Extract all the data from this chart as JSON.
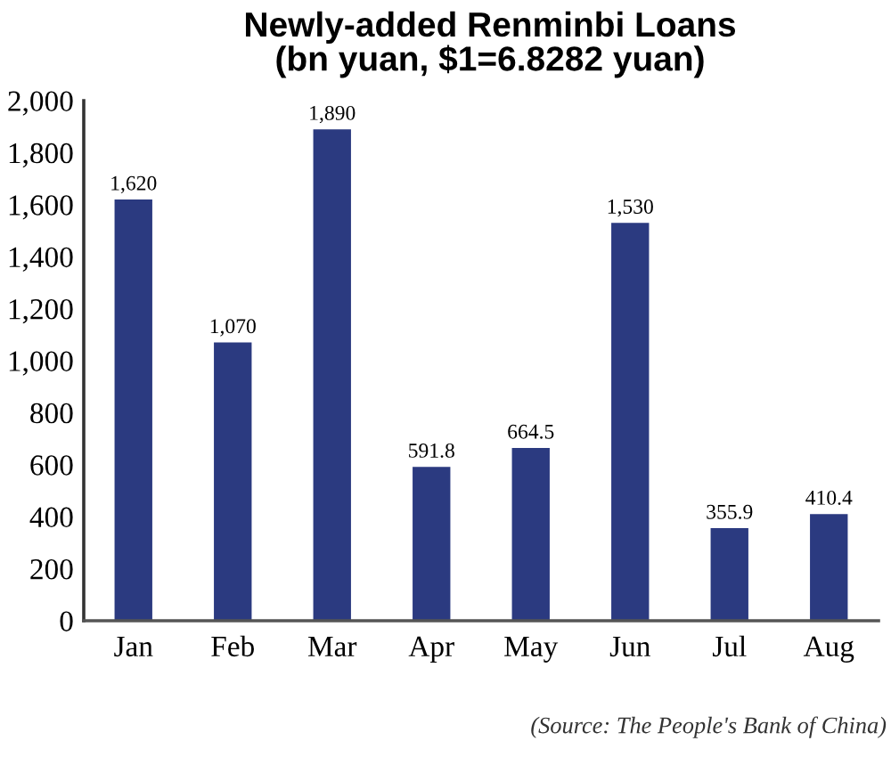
{
  "chart_data": {
    "type": "bar",
    "title": "Newly-added Renminbi Loans\n(bn yuan, $1=6.8282 yuan)",
    "categories": [
      "Jan",
      "Feb",
      "Mar",
      "Apr",
      "May",
      "Jun",
      "Jul",
      "Aug"
    ],
    "values": [
      1620,
      1070,
      1890,
      591.8,
      664.5,
      1530,
      355.9,
      410.4
    ],
    "value_labels": [
      "1,620",
      "1,070",
      "1,890",
      "591.8",
      "664.5",
      "1,530",
      "355.9",
      "410.4"
    ],
    "color": "#2b3a80",
    "ylim": [
      0,
      2000
    ],
    "yticks": [
      0,
      200,
      400,
      600,
      800,
      {
        "value": 1000,
        "label": "1,000"
      },
      {
        "value": 1200,
        "label": "1,200"
      },
      {
        "value": 1400,
        "label": "1,400"
      },
      {
        "value": 1600,
        "label": "1,600"
      },
      {
        "value": 1800,
        "label": "1,800"
      },
      {
        "value": 2000,
        "label": "2,000"
      }
    ],
    "grid": false,
    "legend": false,
    "annotations": [
      "(Source: The People's Bank of China)"
    ]
  }
}
